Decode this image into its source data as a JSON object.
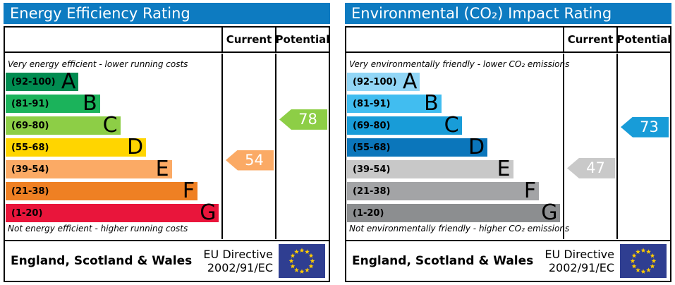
{
  "accent_colors": {
    "header_bg": "#0d7bc1",
    "border": "#000000",
    "eu_flag_bg": "#2f3e91",
    "eu_star": "#ffcc00"
  },
  "panels": [
    {
      "title": "Energy Efficiency Rating",
      "columns": {
        "current": "Current",
        "potential": "Potential"
      },
      "top_caption": "Very energy efficient - lower running costs",
      "bottom_caption": "Not energy efficient - higher running costs",
      "bands": [
        {
          "letter": "A",
          "range": "(92-100)",
          "lo": 92,
          "hi": 100,
          "color": "#008c51",
          "width_pct": 34
        },
        {
          "letter": "B",
          "range": "(81-91)",
          "lo": 81,
          "hi": 91,
          "color": "#1bb35b",
          "width_pct": 44
        },
        {
          "letter": "C",
          "range": "(69-80)",
          "lo": 69,
          "hi": 80,
          "color": "#8dce46",
          "width_pct": 53.5
        },
        {
          "letter": "D",
          "range": "(55-68)",
          "lo": 55,
          "hi": 68,
          "color": "#ffd500",
          "width_pct": 65.5
        },
        {
          "letter": "E",
          "range": "(39-54)",
          "lo": 39,
          "hi": 54,
          "color": "#fbaa65",
          "width_pct": 77.5
        },
        {
          "letter": "F",
          "range": "(21-38)",
          "lo": 21,
          "hi": 38,
          "color": "#ef8023",
          "width_pct": 89.5
        },
        {
          "letter": "G",
          "range": "(1-20)",
          "lo": 1,
          "hi": 20,
          "color": "#e9153b",
          "width_pct": 99.5
        }
      ],
      "current": {
        "value": 54,
        "color": "#fbaa65"
      },
      "potential": {
        "value": 78,
        "color": "#8dce46"
      },
      "footer": {
        "region": "England, Scotland & Wales",
        "directive_line1": "EU Directive",
        "directive_line2": "2002/91/EC"
      }
    },
    {
      "title": "Environmental (CO₂) Impact Rating",
      "columns": {
        "current": "Current",
        "potential": "Potential"
      },
      "top_caption": "Very environmentally friendly - lower CO₂ emissions",
      "bottom_caption": "Not environmentally friendly - higher CO₂ emissions",
      "bands": [
        {
          "letter": "A",
          "range": "(92-100)",
          "lo": 92,
          "hi": 100,
          "color": "#92d6f6",
          "width_pct": 34
        },
        {
          "letter": "B",
          "range": "(81-91)",
          "lo": 81,
          "hi": 91,
          "color": "#41bdf0",
          "width_pct": 44
        },
        {
          "letter": "C",
          "range": "(69-80)",
          "lo": 69,
          "hi": 80,
          "color": "#189cd8",
          "width_pct": 53.5
        },
        {
          "letter": "D",
          "range": "(55-68)",
          "lo": 55,
          "hi": 68,
          "color": "#0b76bb",
          "width_pct": 65.5
        },
        {
          "letter": "E",
          "range": "(39-54)",
          "lo": 39,
          "hi": 54,
          "color": "#c8c8c8",
          "width_pct": 77.5
        },
        {
          "letter": "F",
          "range": "(21-38)",
          "lo": 21,
          "hi": 38,
          "color": "#a3a4a6",
          "width_pct": 89.5
        },
        {
          "letter": "G",
          "range": "(1-20)",
          "lo": 1,
          "hi": 20,
          "color": "#8c8e90",
          "width_pct": 99.5
        }
      ],
      "current": {
        "value": 47,
        "color": "#c9c9c9"
      },
      "potential": {
        "value": 73,
        "color": "#189cd8"
      },
      "footer": {
        "region": "England, Scotland & Wales",
        "directive_line1": "EU Directive",
        "directive_line2": "2002/91/EC"
      }
    }
  ],
  "chart_data": [
    {
      "type": "bar",
      "title": "Energy Efficiency Rating",
      "categories": [
        "A (92-100)",
        "B (81-91)",
        "C (69-80)",
        "D (55-68)",
        "E (39-54)",
        "F (21-38)",
        "G (1-20)"
      ],
      "series": [
        {
          "name": "Current",
          "values": [
            54
          ]
        },
        {
          "name": "Potential",
          "values": [
            78
          ]
        }
      ],
      "value_range": [
        1,
        100
      ],
      "annotations": [
        "Very energy efficient - lower running costs",
        "Not energy efficient - higher running costs",
        "England, Scotland & Wales",
        "EU Directive 2002/91/EC"
      ]
    },
    {
      "type": "bar",
      "title": "Environmental (CO₂) Impact Rating",
      "categories": [
        "A (92-100)",
        "B (81-91)",
        "C (69-80)",
        "D (55-68)",
        "E (39-54)",
        "F (21-38)",
        "G (1-20)"
      ],
      "series": [
        {
          "name": "Current",
          "values": [
            47
          ]
        },
        {
          "name": "Potential",
          "values": [
            73
          ]
        }
      ],
      "value_range": [
        1,
        100
      ],
      "annotations": [
        "Very environmentally friendly - lower CO₂ emissions",
        "Not environmentally friendly - higher CO₂ emissions",
        "England, Scotland & Wales",
        "EU Directive 2002/91/EC"
      ]
    }
  ]
}
